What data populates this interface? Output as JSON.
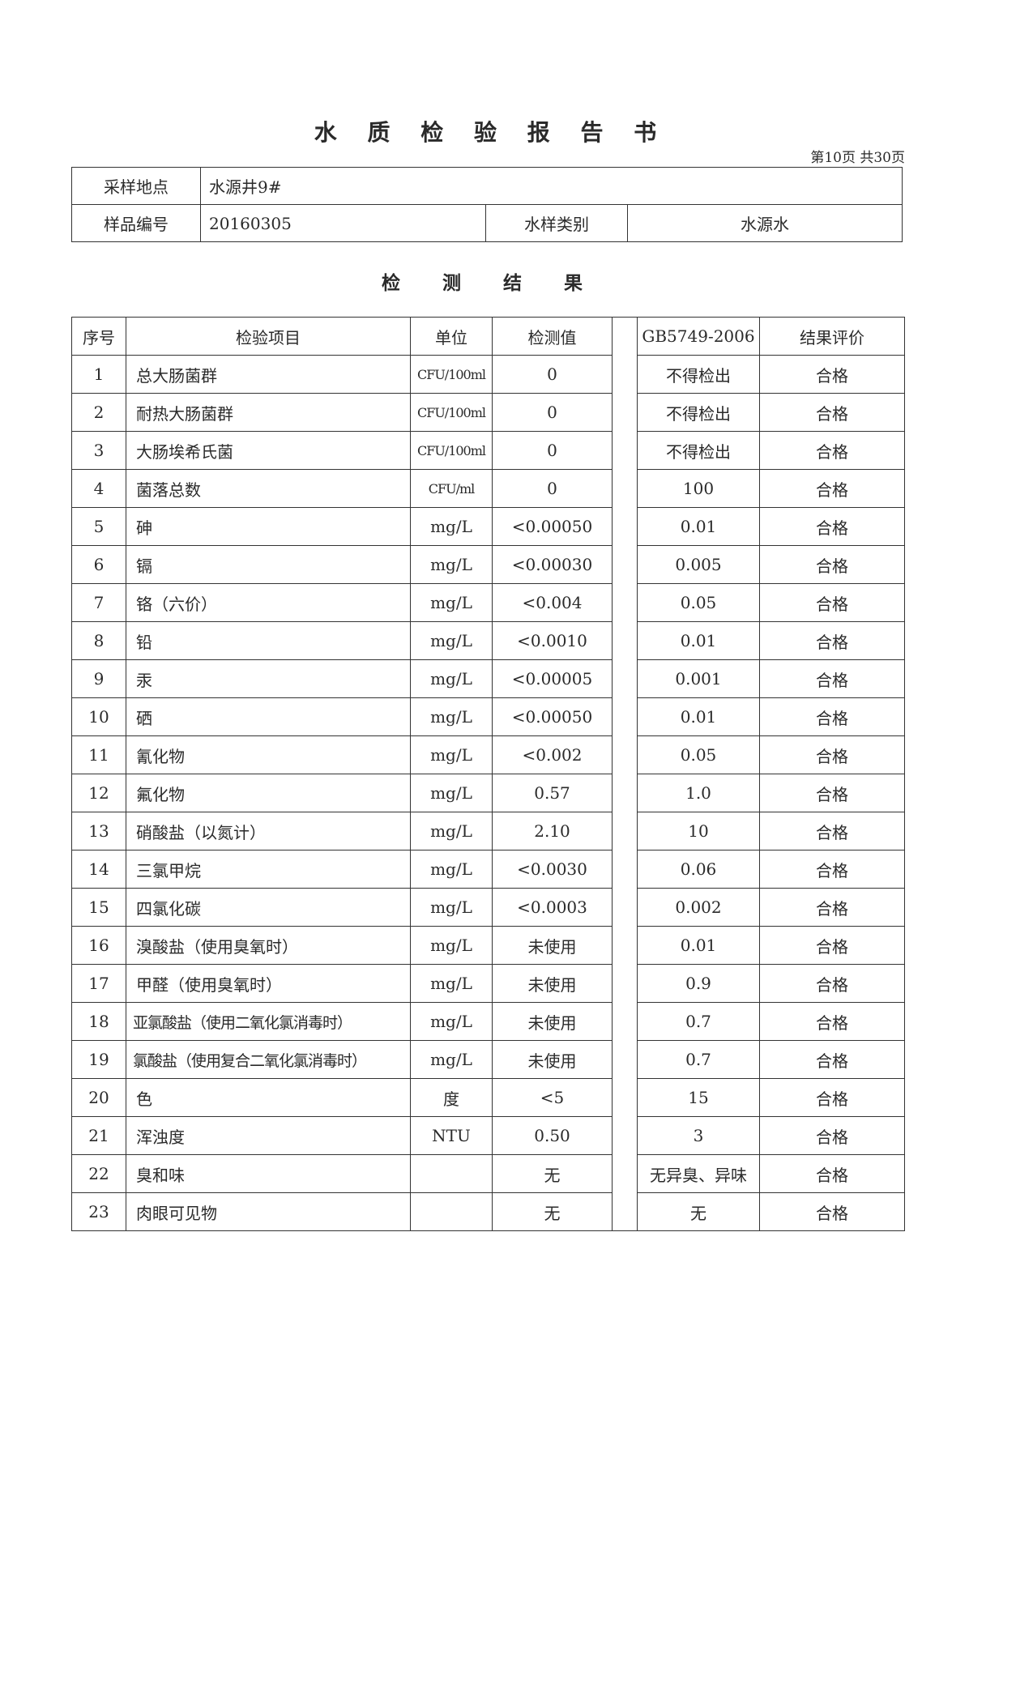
{
  "title": "水 质 检 验 报 告 书",
  "page_info": "第10页  共30页",
  "info": {
    "location_label": "采样地点",
    "location_value": "水源井9#",
    "sample_no_label": "样品编号",
    "sample_no_value": "20160305",
    "type_label": "水样类别",
    "type_value": "水源水"
  },
  "section_title": "检 测 结 果",
  "headers": [
    "序号",
    "检验项目",
    "单位",
    "检测值",
    "GB5749-2006",
    "结果评价"
  ],
  "rows": [
    [
      "1",
      "总大肠菌群",
      "CFU/100ml",
      "0",
      "不得检出",
      "合格"
    ],
    [
      "2",
      "耐热大肠菌群",
      "CFU/100ml",
      "0",
      "不得检出",
      "合格"
    ],
    [
      "3",
      "大肠埃希氏菌",
      "CFU/100ml",
      "0",
      "不得检出",
      "合格"
    ],
    [
      "4",
      "菌落总数",
      "CFU/ml",
      "0",
      "100",
      "合格"
    ],
    [
      "5",
      "砷",
      "mg/L",
      "<0.00050",
      "0.01",
      "合格"
    ],
    [
      "6",
      "镉",
      "mg/L",
      "<0.00030",
      "0.005",
      "合格"
    ],
    [
      "7",
      "铬（六价）",
      "mg/L",
      "<0.004",
      "0.05",
      "合格"
    ],
    [
      "8",
      "铅",
      "mg/L",
      "<0.0010",
      "0.01",
      "合格"
    ],
    [
      "9",
      "汞",
      "mg/L",
      "<0.00005",
      "0.001",
      "合格"
    ],
    [
      "10",
      "硒",
      "mg/L",
      "<0.00050",
      "0.01",
      "合格"
    ],
    [
      "11",
      "氰化物",
      "mg/L",
      "<0.002",
      "0.05",
      "合格"
    ],
    [
      "12",
      "氟化物",
      "mg/L",
      "0.57",
      "1.0",
      "合格"
    ],
    [
      "13",
      "硝酸盐（以氮计）",
      "mg/L",
      "2.10",
      "10",
      "合格"
    ],
    [
      "14",
      "三氯甲烷",
      "mg/L",
      "<0.0030",
      "0.06",
      "合格"
    ],
    [
      "15",
      "四氯化碳",
      "mg/L",
      "<0.0003",
      "0.002",
      "合格"
    ],
    [
      "16",
      "溴酸盐（使用臭氧时）",
      "mg/L",
      "未使用",
      "0.01",
      "合格"
    ],
    [
      "17",
      "甲醛（使用臭氧时）",
      "mg/L",
      "未使用",
      "0.9",
      "合格"
    ],
    [
      "18",
      "亚氯酸盐（使用二氧化氯消毒时）",
      "mg/L",
      "未使用",
      "0.7",
      "合格"
    ],
    [
      "19",
      "氯酸盐（使用复合二氧化氯消毒时）",
      "mg/L",
      "未使用",
      "0.7",
      "合格"
    ],
    [
      "20",
      "色",
      "度",
      "<5",
      "15",
      "合格"
    ],
    [
      "21",
      "浑浊度",
      "NTU",
      "0.50",
      "3",
      "合格"
    ],
    [
      "22",
      "臭和味",
      "",
      "无",
      "无异臭、异味",
      "合格"
    ],
    [
      "23",
      "肉眼可见物",
      "",
      "无",
      "无",
      "合格"
    ]
  ]
}
